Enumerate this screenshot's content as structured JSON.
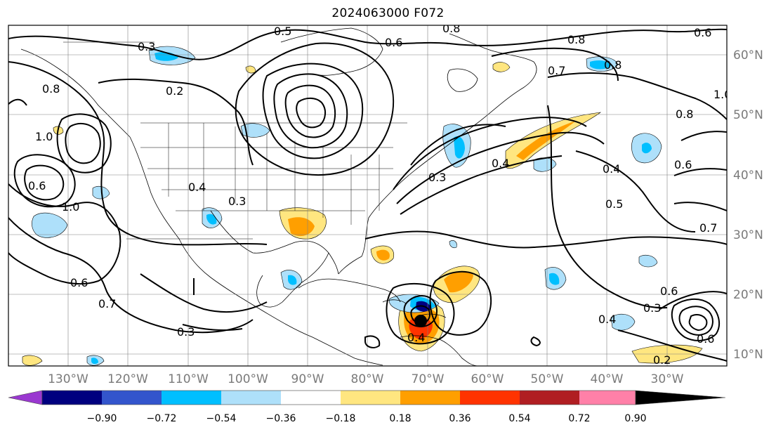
{
  "title": "2024063000 F072",
  "map": {
    "lon_range": [
      -140,
      -20
    ],
    "lat_range": [
      8,
      65
    ],
    "lat_labels": [
      "60°N",
      "50°N",
      "40°N",
      "30°N",
      "20°N",
      "10°N"
    ],
    "lon_labels": [
      "130°W",
      "120°W",
      "110°W",
      "100°W",
      "90°W",
      "80°W",
      "70°W",
      "60°W",
      "50°W",
      "40°W",
      "30°W"
    ],
    "contour_labels": [
      "0.5",
      "0.6",
      "0.8",
      "0.3",
      "0.2",
      "0.8",
      "0.6",
      "0.7",
      "0.8",
      "1.0",
      "0.8",
      "1.0",
      "0.6",
      "0.4",
      "0.7",
      "0.8",
      "0.3",
      "0.6",
      "0.5",
      "0.6",
      "0.4",
      "0.7",
      "0.4",
      "0.3",
      "0.4",
      "0.6",
      "1.0",
      "0.6",
      "0.3",
      "0.4",
      "0.3",
      "0.2"
    ],
    "grid_color": "#808080",
    "storm_marker_color": "#000000"
  },
  "colorbar": {
    "ticks": [
      "−0.90",
      "−0.72",
      "−0.54",
      "−0.36",
      "−0.18",
      "0.18",
      "0.36",
      "0.54",
      "0.72",
      "0.90"
    ],
    "colors": [
      "#9a38d0",
      "#00007f",
      "#3355cc",
      "#00bfff",
      "#aee0fa",
      "#ffffff",
      "#ffe680",
      "#ff9f00",
      "#ff3300",
      "#b01e22",
      "#ff80a8"
    ]
  }
}
